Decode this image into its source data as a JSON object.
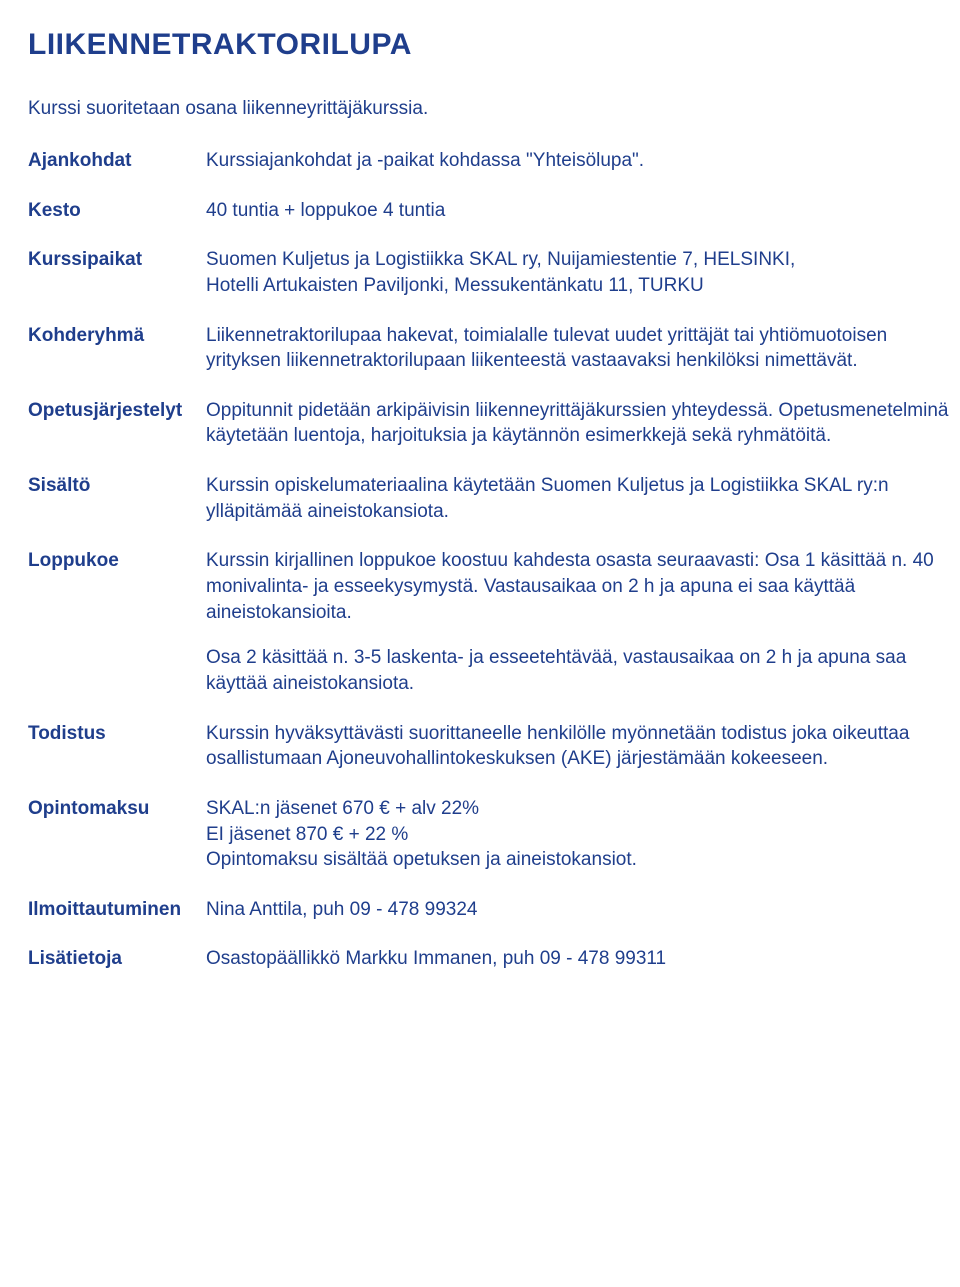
{
  "title": "LIIKENNETRAKTORILUPA",
  "intro": "Kurssi suoritetaan osana liikenneyrittäjäkurssia.",
  "rows": {
    "ajankohdat": {
      "label": "Ajankohdat",
      "text": "Kurssiajankohdat ja -paikat kohdassa \"Yhteisölupa\"."
    },
    "kesto": {
      "label": "Kesto",
      "text": "40 tuntia + loppukoe 4 tuntia"
    },
    "kurssipaikat": {
      "label": "Kurssipaikat",
      "line1": "Suomen Kuljetus ja Logistiikka SKAL ry, Nuijamiestentie 7, HELSINKI,",
      "line2": "Hotelli Artukaisten Paviljonki, Messukentänkatu 11, TURKU"
    },
    "kohderyhma": {
      "label": "Kohderyhmä",
      "text": "Liikennetraktorilupaa hakevat, toimialalle tulevat uudet yrittäjät tai yhtiömuotoisen yrityksen liikennetraktorilupaan liikenteestä vastaavaksi henkilöksi nimettävät."
    },
    "opetus": {
      "label": "Opetusjärjestelyt",
      "text": "Oppitunnit pidetään arkipäivisin liikenneyrittäjäkurssien yhteydessä. Opetusmenetelminä käytetään luentoja, harjoituksia ja käytännön esimerkkejä sekä ryhmätöitä."
    },
    "sisalto": {
      "label": "Sisältö",
      "text": "Kurssin opiskelumateriaalina käytetään Suomen Kuljetus ja Logistiikka SKAL ry:n ylläpitämää aineistokansiota."
    },
    "loppukoe": {
      "label": "Loppukoe",
      "p1": "Kurssin kirjallinen loppukoe koostuu kahdesta osasta  seuraavasti: Osa 1 käsittää n. 40 monivalinta- ja esseekysymystä. Vastausaikaa on 2 h ja apuna ei saa käyttää aineistokansioita.",
      "p2": "Osa 2 käsittää n. 3-5 laskenta- ja esseetehtävää, vastausaikaa on  2 h ja apuna saa käyttää aineistokansiota."
    },
    "todistus": {
      "label": "Todistus",
      "text": "Kurssin hyväksyttävästi suorittaneelle henkilölle myönnetään todistus joka oikeuttaa osallistumaan Ajoneuvohallintokeskuksen (AKE) järjestämään kokeeseen."
    },
    "opintomaksu": {
      "label": "Opintomaksu",
      "line1": "SKAL:n jäsenet 670 € + alv 22%",
      "line2": "EI jäsenet 870 € + 22 %",
      "line3": "Opintomaksu sisältää opetuksen ja aineistokansiot."
    },
    "ilmoittautuminen": {
      "label": "Ilmoittautuminen",
      "text": "Nina Anttila, puh 09 - 478 99324"
    },
    "lisatietoja": {
      "label": "Lisätietoja",
      "text": "Osastopäällikkö Markku Immanen, puh 09 - 478 99311"
    }
  }
}
